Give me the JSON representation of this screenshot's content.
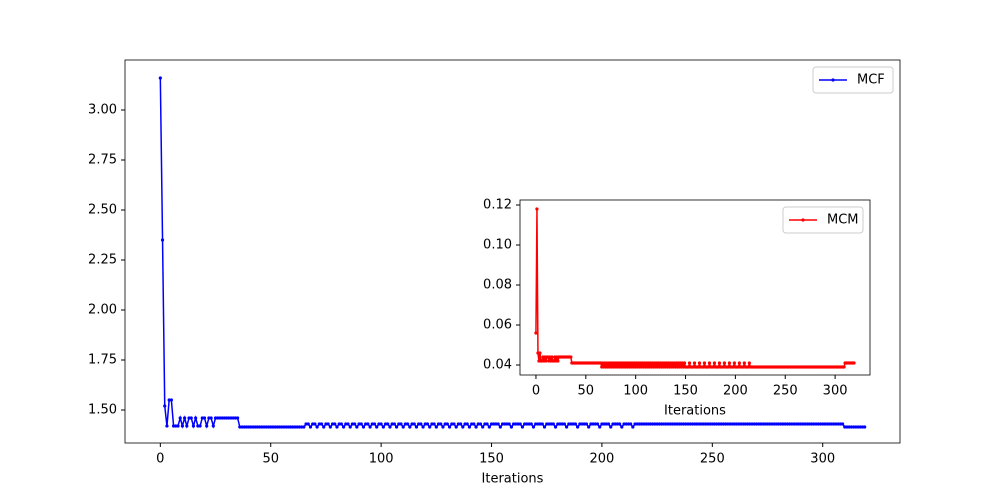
{
  "chart_data": [
    {
      "type": "line",
      "xlabel": "Iterations",
      "legend": "upper right",
      "xlim": [
        -16,
        335
      ],
      "xticks": [
        0,
        50,
        100,
        150,
        200,
        250,
        300
      ],
      "ylim": [
        1.335,
        3.25
      ],
      "yticks": [
        {
          "value": 1.5,
          "label": "1.50"
        },
        1.75,
        {
          "value": 2,
          "label": "2.00"
        },
        2.25,
        {
          "value": 2.5,
          "label": "2.50"
        },
        2.75,
        {
          "value": 3,
          "label": "3.00"
        }
      ],
      "series": [
        {
          "name": "MCF",
          "color": "#0000ff",
          "values": [
            3.16,
            2.35,
            1.52,
            1.42,
            1.55,
            1.55,
            1.42,
            1.42,
            1.42,
            1.46,
            1.42,
            1.46,
            1.42,
            1.46,
            1.46,
            1.42,
            1.46,
            1.42,
            1.42,
            1.46,
            1.46,
            1.42,
            1.46,
            1.46,
            1.42,
            1.46,
            1.46,
            1.46,
            1.46,
            1.46,
            1.46,
            1.46,
            1.46,
            1.46,
            1.46,
            1.46,
            1.415,
            1.415,
            1.415,
            1.415,
            1.415,
            1.415,
            1.415,
            1.415,
            1.415,
            1.415,
            1.415,
            1.415,
            1.415,
            1.415,
            1.415,
            1.415,
            1.415,
            1.415,
            1.415,
            1.415,
            1.415,
            1.415,
            1.415,
            1.415,
            1.415,
            1.415,
            1.415,
            1.415,
            1.415,
            1.415,
            1.43,
            1.43,
            1.415,
            1.43,
            1.43,
            1.415,
            1.43,
            1.43,
            1.415,
            1.43,
            1.43,
            1.415,
            1.43,
            1.43,
            1.415,
            1.43,
            1.43,
            1.415,
            1.43,
            1.43,
            1.415,
            1.43,
            1.43,
            1.415,
            1.43,
            1.43,
            1.415,
            1.43,
            1.43,
            1.415,
            1.43,
            1.43,
            1.415,
            1.43,
            1.43,
            1.415,
            1.43,
            1.43,
            1.415,
            1.43,
            1.43,
            1.415,
            1.43,
            1.43,
            1.415,
            1.43,
            1.43,
            1.415,
            1.43,
            1.43,
            1.415,
            1.43,
            1.43,
            1.415,
            1.43,
            1.43,
            1.415,
            1.43,
            1.43,
            1.415,
            1.43,
            1.43,
            1.415,
            1.43,
            1.43,
            1.415,
            1.43,
            1.43,
            1.415,
            1.43,
            1.43,
            1.415,
            1.43,
            1.43,
            1.415,
            1.43,
            1.43,
            1.415,
            1.43,
            1.43,
            1.415,
            1.43,
            1.43,
            1.415,
            1.43,
            1.43,
            1.43,
            1.43,
            1.415,
            1.43,
            1.43,
            1.43,
            1.43,
            1.415,
            1.43,
            1.43,
            1.43,
            1.43,
            1.415,
            1.43,
            1.43,
            1.43,
            1.43,
            1.415,
            1.43,
            1.43,
            1.43,
            1.43,
            1.415,
            1.43,
            1.43,
            1.43,
            1.43,
            1.415,
            1.43,
            1.43,
            1.43,
            1.43,
            1.415,
            1.43,
            1.43,
            1.43,
            1.43,
            1.415,
            1.43,
            1.43,
            1.43,
            1.43,
            1.415,
            1.43,
            1.43,
            1.43,
            1.43,
            1.415,
            1.43,
            1.43,
            1.43,
            1.43,
            1.415,
            1.43,
            1.43,
            1.43,
            1.43,
            1.415,
            1.43,
            1.43,
            1.43,
            1.43,
            1.415,
            1.43,
            1.43,
            1.43,
            1.43,
            1.43,
            1.43,
            1.43,
            1.43,
            1.43,
            1.43,
            1.43,
            1.43,
            1.43,
            1.43,
            1.43,
            1.43,
            1.43,
            1.43,
            1.43,
            1.43,
            1.43,
            1.43,
            1.43,
            1.43,
            1.43,
            1.43,
            1.43,
            1.43,
            1.43,
            1.43,
            1.43,
            1.43,
            1.43,
            1.43,
            1.43,
            1.43,
            1.43,
            1.43,
            1.43,
            1.43,
            1.43,
            1.43,
            1.43,
            1.43,
            1.43,
            1.43,
            1.43,
            1.43,
            1.43,
            1.43,
            1.43,
            1.43,
            1.43,
            1.43,
            1.43,
            1.43,
            1.43,
            1.43,
            1.43,
            1.43,
            1.43,
            1.43,
            1.43,
            1.43,
            1.43,
            1.43,
            1.43,
            1.43,
            1.43,
            1.43,
            1.43,
            1.43,
            1.43,
            1.43,
            1.43,
            1.43,
            1.43,
            1.43,
            1.43,
            1.43,
            1.43,
            1.43,
            1.43,
            1.43,
            1.43,
            1.43,
            1.43,
            1.43,
            1.43,
            1.43,
            1.43,
            1.43,
            1.43,
            1.43,
            1.43,
            1.415,
            1.415,
            1.415,
            1.415,
            1.415,
            1.415,
            1.415,
            1.415,
            1.415,
            1.415
          ]
        }
      ]
    },
    {
      "type": "line",
      "xlabel": "Iterations",
      "legend": "upper right",
      "xlim": [
        -16,
        335
      ],
      "xticks": [
        0,
        50,
        100,
        150,
        200,
        250,
        300
      ],
      "ylim": [
        0.035,
        0.1225
      ],
      "yticks": [
        0.04,
        0.06,
        0.08,
        {
          "value": 0.1,
          "label": "0.10"
        },
        0.12
      ],
      "series": [
        {
          "name": "MCM",
          "color": "#ff0000",
          "values": [
            0.056,
            0.118,
            0.046,
            0.042,
            0.046,
            0.042,
            0.042,
            0.044,
            0.042,
            0.044,
            0.042,
            0.044,
            0.044,
            0.042,
            0.044,
            0.042,
            0.044,
            0.042,
            0.042,
            0.044,
            0.042,
            0.044,
            0.042,
            0.044,
            0.044,
            0.044,
            0.044,
            0.044,
            0.044,
            0.044,
            0.044,
            0.044,
            0.044,
            0.044,
            0.044,
            0.044,
            0.041,
            0.041,
            0.041,
            0.041,
            0.041,
            0.041,
            0.041,
            0.041,
            0.041,
            0.041,
            0.041,
            0.041,
            0.041,
            0.041,
            0.041,
            0.041,
            0.041,
            0.041,
            0.041,
            0.041,
            0.041,
            0.041,
            0.041,
            0.041,
            0.041,
            0.041,
            0.041,
            0.041,
            0.041,
            0.041,
            0.039,
            0.041,
            0.039,
            0.041,
            0.039,
            0.041,
            0.039,
            0.041,
            0.039,
            0.041,
            0.039,
            0.041,
            0.039,
            0.041,
            0.039,
            0.041,
            0.039,
            0.041,
            0.039,
            0.041,
            0.039,
            0.041,
            0.039,
            0.041,
            0.039,
            0.041,
            0.039,
            0.041,
            0.039,
            0.041,
            0.039,
            0.041,
            0.039,
            0.041,
            0.039,
            0.041,
            0.039,
            0.041,
            0.039,
            0.041,
            0.039,
            0.041,
            0.039,
            0.041,
            0.039,
            0.041,
            0.039,
            0.041,
            0.039,
            0.041,
            0.039,
            0.041,
            0.039,
            0.041,
            0.039,
            0.041,
            0.039,
            0.041,
            0.039,
            0.041,
            0.039,
            0.041,
            0.039,
            0.041,
            0.039,
            0.041,
            0.039,
            0.041,
            0.039,
            0.041,
            0.039,
            0.041,
            0.039,
            0.041,
            0.039,
            0.041,
            0.039,
            0.041,
            0.039,
            0.041,
            0.039,
            0.041,
            0.039,
            0.041,
            0.039,
            0.039,
            0.039,
            0.039,
            0.041,
            0.039,
            0.039,
            0.039,
            0.039,
            0.041,
            0.039,
            0.039,
            0.039,
            0.039,
            0.041,
            0.039,
            0.039,
            0.039,
            0.039,
            0.041,
            0.039,
            0.039,
            0.039,
            0.039,
            0.041,
            0.039,
            0.039,
            0.039,
            0.039,
            0.041,
            0.039,
            0.039,
            0.039,
            0.039,
            0.041,
            0.039,
            0.039,
            0.039,
            0.039,
            0.041,
            0.039,
            0.039,
            0.039,
            0.039,
            0.041,
            0.039,
            0.039,
            0.039,
            0.039,
            0.041,
            0.039,
            0.039,
            0.039,
            0.039,
            0.041,
            0.039,
            0.039,
            0.039,
            0.039,
            0.041,
            0.039,
            0.039,
            0.039,
            0.039,
            0.041,
            0.039,
            0.039,
            0.039,
            0.039,
            0.039,
            0.039,
            0.039,
            0.039,
            0.039,
            0.039,
            0.039,
            0.039,
            0.039,
            0.039,
            0.039,
            0.039,
            0.039,
            0.039,
            0.039,
            0.039,
            0.039,
            0.039,
            0.039,
            0.039,
            0.039,
            0.039,
            0.039,
            0.039,
            0.039,
            0.039,
            0.039,
            0.039,
            0.039,
            0.039,
            0.039,
            0.039,
            0.039,
            0.039,
            0.039,
            0.039,
            0.039,
            0.039,
            0.039,
            0.039,
            0.039,
            0.039,
            0.039,
            0.039,
            0.039,
            0.039,
            0.039,
            0.039,
            0.039,
            0.039,
            0.039,
            0.039,
            0.039,
            0.039,
            0.039,
            0.039,
            0.039,
            0.039,
            0.039,
            0.039,
            0.039,
            0.039,
            0.039,
            0.039,
            0.039,
            0.039,
            0.039,
            0.039,
            0.039,
            0.039,
            0.039,
            0.039,
            0.039,
            0.039,
            0.039,
            0.039,
            0.039,
            0.039,
            0.039,
            0.039,
            0.039,
            0.039,
            0.039,
            0.039,
            0.039,
            0.039,
            0.039,
            0.039,
            0.039,
            0.039,
            0.039,
            0.041,
            0.041,
            0.041,
            0.041,
            0.041,
            0.041,
            0.041,
            0.041,
            0.041,
            0.041
          ]
        }
      ]
    }
  ]
}
